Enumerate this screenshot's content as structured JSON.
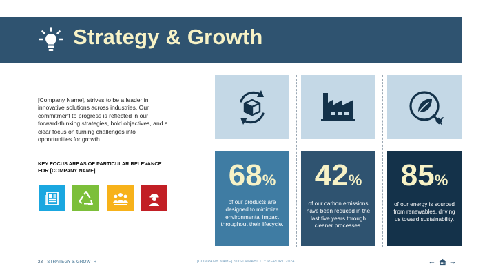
{
  "header": {
    "title": "Strategy & Growth",
    "icon": "lightbulb-icon"
  },
  "intro": "[Company Name], strives to be a leader in innovative solutions across industries. Our commitment to progress is reflected in our forward-thinking strategies, bold objectives, and a clear focus on turning challenges into opportunities for growth.",
  "focus_heading": "KEY FOCUS AREAS OF PARTICULAR RELEVANCE FOR [COMPANY NAME]",
  "sdg_icons": [
    {
      "name": "newspaper-icon",
      "color": "#1aa7e0"
    },
    {
      "name": "recycle-icon",
      "color": "#7cbf3a"
    },
    {
      "name": "community-icon",
      "color": "#f7b21a"
    },
    {
      "name": "worker-icon",
      "color": "#c21f25"
    }
  ],
  "stats": [
    {
      "icon": "recycle-box-icon",
      "value": "68",
      "unit": "%",
      "text": "of our products are designed to minimize environmental impact throughout their lifecycle.",
      "color": "#3f7ca3"
    },
    {
      "icon": "factory-icon",
      "value": "42",
      "unit": "%",
      "text": "of our carbon emissions have been reduced in the last five years through cleaner processes.",
      "color": "#2f5370"
    },
    {
      "icon": "green-energy-icon",
      "value": "85",
      "unit": "%",
      "text": "of our energy is sourced from renewables, driving us toward sustainability.",
      "color": "#14324a"
    }
  ],
  "footer": {
    "page_number": "23",
    "section": "STRATEGY & GROWTH",
    "report": "[COMPANY NAME] SUSTAINABILITY REPORT 2024"
  },
  "nav": {
    "prev": "←",
    "home": "home-icon",
    "next": "→"
  },
  "colors": {
    "accent": "#2f5370",
    "title": "#f7f2c6",
    "icon_bg": "#c4d8e6"
  }
}
